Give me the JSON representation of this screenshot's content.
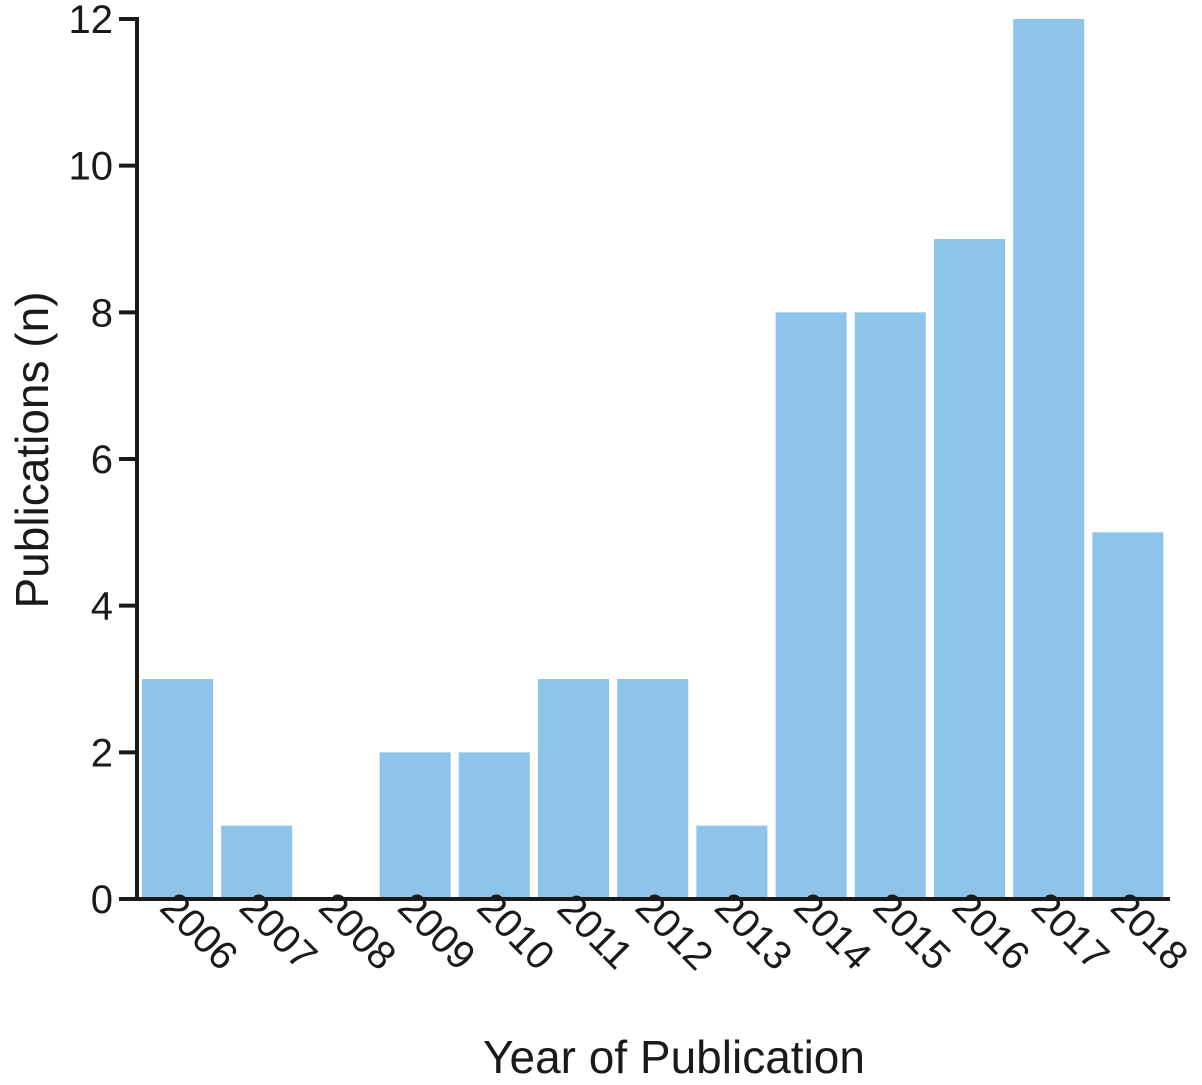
{
  "chart_data": {
    "type": "bar",
    "categories": [
      "2006",
      "2007",
      "2008",
      "2009",
      "2010",
      "2011",
      "2012",
      "2013",
      "2014",
      "2015",
      "2016",
      "2017",
      "2018"
    ],
    "values": [
      3,
      1,
      0,
      2,
      2,
      3,
      3,
      1,
      8,
      8,
      9,
      12,
      5
    ],
    "title": "",
    "xlabel": "Year of Publication",
    "ylabel": "Publications (n)",
    "ylim": [
      0,
      12
    ],
    "yticks": [
      0,
      2,
      4,
      6,
      8,
      10,
      12
    ],
    "grid": false,
    "bar_color": "#8ec4ea"
  }
}
